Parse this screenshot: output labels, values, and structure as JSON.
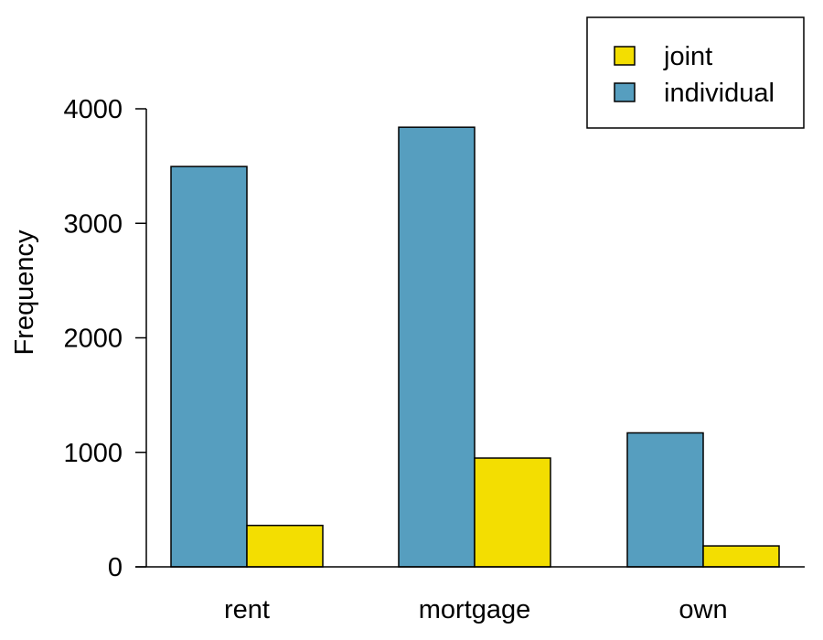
{
  "chart_data": {
    "type": "bar",
    "title": "",
    "xlabel": "",
    "ylabel": "Frequency",
    "categories": [
      "rent",
      "mortgage",
      "own"
    ],
    "series": [
      {
        "name": "individual",
        "values": [
          3496,
          3839,
          1170
        ]
      },
      {
        "name": "joint",
        "values": [
          362,
          950,
          183
        ]
      }
    ],
    "ylim": [
      0,
      4000
    ],
    "yticks": [
      "0",
      "1000",
      "2000",
      "3000",
      "4000"
    ],
    "grid": false,
    "legend": {
      "position": "top-right",
      "entries": [
        {
          "label": "joint"
        },
        {
          "label": "individual"
        }
      ]
    },
    "colors": {
      "individual": "#569EBF",
      "joint": "#F3DE01"
    }
  }
}
